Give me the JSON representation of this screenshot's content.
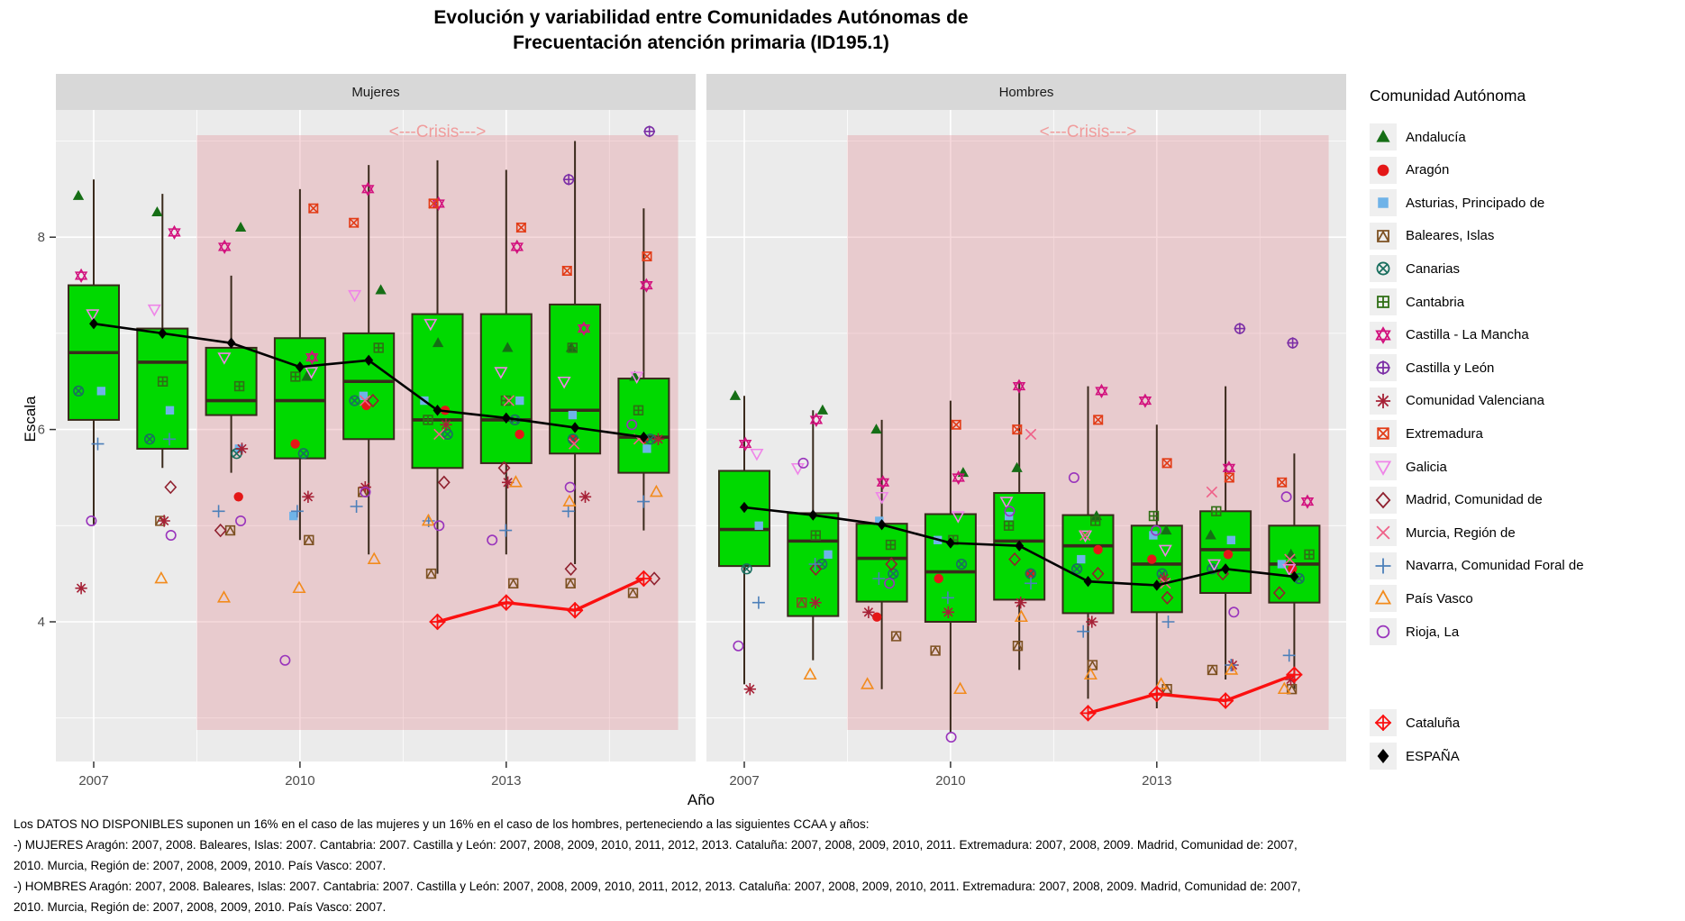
{
  "title": {
    "line1": "Evolución y variabilidad entre Comunidades Autónomas de",
    "line2": "Frecuentación atención primaria (ID195.1)"
  },
  "facets": [
    "Mujeres",
    "Hombres"
  ],
  "axes": {
    "x_label": "Año",
    "y_label": "Escala",
    "x_ticks": [
      "2007",
      "2010",
      "2013"
    ],
    "y_ticks": [
      "4",
      "6",
      "8"
    ]
  },
  "crisis": {
    "label": "<---Crisis--->",
    "start_year": 2008.5,
    "end_year": 2015.5,
    "fill": "rgba(225,128,138,0.30)",
    "text_color": "#f09c9c"
  },
  "style": {
    "panel_bg": "#ebebeb",
    "strip_bg": "#d8d8d8",
    "grid": "#ffffff",
    "box_fill": "#00d900",
    "box_border": "#3a2a1c",
    "tick_text": "#4d4d4d"
  },
  "legend": {
    "title": "Comunidad Autónoma",
    "entries": [
      {
        "id": "andalucia",
        "label": "Andalucía",
        "shape": "triangle-filled",
        "color": "#156e15"
      },
      {
        "id": "aragon",
        "label": "Aragón",
        "shape": "circle-filled",
        "color": "#e41717"
      },
      {
        "id": "asturias",
        "label": "Asturias, Principado de",
        "shape": "square-filled",
        "color": "#6fb3e8"
      },
      {
        "id": "baleares",
        "label": "Baleares, Islas",
        "shape": "square-caret",
        "color": "#7d5122"
      },
      {
        "id": "canarias",
        "label": "Canarias",
        "shape": "circle-x",
        "color": "#1a6f5f"
      },
      {
        "id": "cantabria",
        "label": "Cantabria",
        "shape": "square-plus",
        "color": "#2f6e14"
      },
      {
        "id": "castilla_la_mancha",
        "label": "Castilla - La Mancha",
        "shape": "star-of-david",
        "color": "#d2127e"
      },
      {
        "id": "castilla_y_leon",
        "label": "Castilla y León",
        "shape": "circle-plus",
        "color": "#7c2fa6"
      },
      {
        "id": "valenciana",
        "label": "Comunidad Valenciana",
        "shape": "asterisk",
        "color": "#a62136"
      },
      {
        "id": "extremadura",
        "label": "Extremadura",
        "shape": "square-x",
        "color": "#e23c17"
      },
      {
        "id": "galicia",
        "label": "Galicia",
        "shape": "triangle-down-open",
        "color": "#ef85e8"
      },
      {
        "id": "madrid",
        "label": "Madrid, Comunidad de",
        "shape": "diamond-open",
        "color": "#90212f"
      },
      {
        "id": "murcia",
        "label": "Murcia, Región de",
        "shape": "x-cross",
        "color": "#ef6088"
      },
      {
        "id": "navarra",
        "label": "Navarra, Comunidad Foral de",
        "shape": "plus",
        "color": "#4d80ba"
      },
      {
        "id": "pais_vasco",
        "label": "País Vasco",
        "shape": "triangle-open",
        "color": "#f28b1d"
      },
      {
        "id": "rioja",
        "label": "Rioja, La",
        "shape": "circle-open",
        "color": "#9934bc"
      }
    ],
    "extra": [
      {
        "id": "cataluna",
        "label": "Cataluña",
        "shape": "diamond-plus",
        "color": "#fb1010"
      },
      {
        "id": "espana",
        "label": "ESPAÑA",
        "shape": "diamond-filled",
        "color": "#000000"
      }
    ]
  },
  "chart_data": {
    "type": "boxplot",
    "years": [
      2007,
      2008,
      2009,
      2010,
      2011,
      2012,
      2013,
      2014,
      2015
    ],
    "xlabel": "Año",
    "ylabel": "Escala",
    "ylim": [
      2.55,
      9.32
    ],
    "yticks": [
      4,
      6,
      8
    ],
    "xticks": [
      2007,
      2010,
      2013
    ],
    "crisis_span": [
      2008.5,
      2015.5
    ],
    "panels": [
      {
        "name": "Mujeres",
        "boxes": [
          [
            5.0,
            6.1,
            6.8,
            7.5,
            8.6
          ],
          [
            5.6,
            5.8,
            6.7,
            7.05,
            8.45
          ],
          [
            5.55,
            6.15,
            6.3,
            6.85,
            7.6
          ],
          [
            4.85,
            5.7,
            6.3,
            6.95,
            8.5
          ],
          [
            4.7,
            5.9,
            6.5,
            7.0,
            8.75
          ],
          [
            4.5,
            5.6,
            6.1,
            7.2,
            8.8
          ],
          [
            4.7,
            5.65,
            6.1,
            7.2,
            8.7
          ],
          [
            4.6,
            5.75,
            6.2,
            7.3,
            9.0
          ],
          [
            4.95,
            5.55,
            5.92,
            6.53,
            8.3
          ]
        ],
        "espana": [
          7.1,
          7.0,
          6.9,
          6.65,
          6.72,
          6.2,
          6.12,
          6.02,
          5.92
        ],
        "cataluna": {
          "years": [
            2012,
            2013,
            2014,
            2015
          ],
          "values": [
            4.0,
            4.2,
            4.12,
            4.45
          ]
        },
        "points": {
          "andalucia": [
            8.43,
            8.26,
            8.1,
            6.55,
            7.45,
            6.9,
            6.85,
            6.85,
            6.55
          ],
          "aragon": [
            null,
            null,
            5.3,
            5.85,
            6.25,
            6.2,
            5.95,
            5.9,
            5.9
          ],
          "asturias": [
            6.4,
            6.2,
            5.8,
            5.1,
            6.35,
            6.3,
            6.3,
            6.15,
            5.8
          ],
          "baleares": [
            null,
            5.05,
            4.95,
            4.85,
            5.35,
            4.5,
            4.4,
            4.4,
            4.3
          ],
          "canarias": [
            6.4,
            5.9,
            5.75,
            5.75,
            6.3,
            5.95,
            6.1,
            5.9,
            5.9
          ],
          "cantabria": [
            null,
            6.5,
            6.45,
            6.55,
            6.85,
            6.1,
            6.3,
            6.85,
            6.2
          ],
          "castilla_la_mancha": [
            7.6,
            8.05,
            7.9,
            6.75,
            8.5,
            8.35,
            7.9,
            7.05,
            7.5
          ],
          "castilla_y_leon": [
            null,
            null,
            null,
            null,
            null,
            null,
            null,
            8.6,
            9.1
          ],
          "valenciana": [
            4.35,
            5.05,
            5.8,
            5.3,
            5.4,
            6.05,
            5.45,
            5.3,
            5.9
          ],
          "extremadura": [
            null,
            null,
            null,
            8.3,
            8.15,
            8.35,
            8.1,
            7.65,
            7.8
          ],
          "galicia": [
            7.2,
            7.25,
            6.75,
            6.6,
            7.4,
            7.1,
            6.6,
            6.5,
            6.55
          ],
          "madrid": [
            null,
            5.4,
            4.95,
            null,
            6.3,
            5.45,
            5.6,
            4.55,
            4.45
          ],
          "murcia": [
            null,
            null,
            null,
            null,
            6.3,
            5.95,
            6.3,
            5.85,
            5.9
          ],
          "navarra": [
            5.85,
            5.9,
            5.15,
            5.15,
            5.2,
            5.05,
            4.95,
            5.15,
            5.25
          ],
          "pais_vasco": [
            null,
            4.45,
            4.25,
            4.35,
            4.65,
            5.05,
            5.45,
            5.25,
            5.35
          ],
          "rioja": [
            5.05,
            4.9,
            5.05,
            3.6,
            5.35,
            5.0,
            4.85,
            5.4,
            6.05
          ]
        }
      },
      {
        "name": "Hombres",
        "boxes": [
          [
            3.35,
            4.58,
            4.96,
            5.57,
            6.35
          ],
          [
            3.6,
            4.06,
            4.84,
            5.13,
            6.2
          ],
          [
            3.3,
            4.21,
            4.66,
            5.02,
            6.1
          ],
          [
            2.85,
            4.0,
            4.52,
            5.12,
            6.3
          ],
          [
            3.5,
            4.23,
            4.84,
            5.34,
            6.5
          ],
          [
            3.2,
            4.09,
            4.79,
            5.11,
            6.45
          ],
          [
            3.1,
            4.1,
            4.6,
            5.0,
            6.05
          ],
          [
            3.4,
            4.3,
            4.75,
            5.15,
            6.45
          ],
          [
            3.3,
            4.2,
            4.6,
            5.0,
            5.75
          ]
        ],
        "espana": [
          5.19,
          5.11,
          5.01,
          4.82,
          4.79,
          4.42,
          4.38,
          4.55,
          4.47
        ],
        "cataluna": {
          "years": [
            2012,
            2013,
            2014,
            2015
          ],
          "values": [
            3.05,
            3.25,
            3.18,
            3.45
          ]
        },
        "points": {
          "andalucia": [
            6.35,
            6.2,
            6.0,
            5.55,
            5.6,
            5.1,
            4.95,
            4.9,
            4.7
          ],
          "aragon": [
            null,
            null,
            4.05,
            4.45,
            4.5,
            4.75,
            4.65,
            4.7,
            4.55
          ],
          "asturias": [
            5.0,
            4.7,
            5.05,
            4.85,
            5.1,
            4.65,
            4.9,
            4.85,
            4.6
          ],
          "baleares": [
            null,
            4.2,
            3.85,
            3.7,
            3.75,
            3.55,
            3.3,
            3.5,
            3.3
          ],
          "canarias": [
            4.55,
            4.6,
            4.5,
            4.6,
            4.5,
            4.55,
            4.5,
            4.55,
            4.45
          ],
          "cantabria": [
            null,
            4.9,
            4.8,
            4.85,
            5.0,
            5.05,
            5.1,
            5.15,
            4.7
          ],
          "castilla_la_mancha": [
            5.85,
            6.1,
            5.45,
            5.5,
            6.45,
            6.4,
            6.3,
            5.6,
            5.25
          ],
          "castilla_y_leon": [
            null,
            null,
            null,
            null,
            null,
            null,
            null,
            7.05,
            6.9
          ],
          "valenciana": [
            3.3,
            4.2,
            4.1,
            4.1,
            4.2,
            4.0,
            4.45,
            3.55,
            3.4
          ],
          "extremadura": [
            null,
            null,
            null,
            6.05,
            6.0,
            6.1,
            5.65,
            5.5,
            5.45
          ],
          "galicia": [
            5.75,
            5.6,
            5.3,
            5.1,
            5.25,
            4.9,
            4.75,
            4.6,
            4.55
          ],
          "madrid": [
            null,
            4.55,
            4.6,
            null,
            4.65,
            4.5,
            4.25,
            4.5,
            4.3
          ],
          "murcia": [
            null,
            null,
            null,
            null,
            5.95,
            4.9,
            4.4,
            5.35,
            4.65
          ],
          "navarra": [
            4.2,
            4.6,
            4.45,
            4.25,
            4.4,
            3.9,
            4.0,
            3.55,
            3.65
          ],
          "pais_vasco": [
            null,
            3.45,
            3.35,
            3.3,
            4.05,
            3.45,
            3.35,
            3.5,
            3.3
          ],
          "rioja": [
            3.75,
            5.65,
            4.4,
            2.8,
            5.15,
            5.5,
            4.95,
            4.1,
            5.3
          ]
        }
      }
    ]
  },
  "footnote": {
    "lines": [
      "Los DATOS NO DISPONIBLES suponen un 16% en el caso de las mujeres y un 16% en el caso de los hombres, perteneciendo a las siguientes CCAA y años:",
      "-) MUJERES Aragón: 2007, 2008. Baleares, Islas: 2007. Cantabria: 2007. Castilla y León: 2007, 2008, 2009, 2010, 2011, 2012, 2013. Cataluña: 2007, 2008, 2009, 2010, 2011. Extremadura: 2007, 2008, 2009. Madrid, Comunidad de: 2007,",
      "2010. Murcia, Región de: 2007, 2008, 2009, 2010. País Vasco: 2007.",
      "-) HOMBRES Aragón: 2007, 2008. Baleares, Islas: 2007. Cantabria: 2007. Castilla y León: 2007, 2008, 2009, 2010, 2011, 2012, 2013. Cataluña: 2007, 2008, 2009, 2010, 2011. Extremadura: 2007, 2008, 2009. Madrid, Comunidad de: 2007,",
      "2010. Murcia, Región de: 2007, 2008, 2009, 2010. País Vasco: 2007."
    ]
  }
}
